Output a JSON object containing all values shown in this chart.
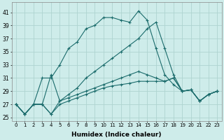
{
  "xlabel": "Humidex (Indice chaleur)",
  "ylabel": "",
  "xlim": [
    -0.5,
    23.5
  ],
  "ylim": [
    24.5,
    42.5
  ],
  "yticks": [
    25,
    27,
    29,
    31,
    33,
    35,
    37,
    39,
    41
  ],
  "xticks": [
    0,
    1,
    2,
    3,
    4,
    5,
    6,
    7,
    8,
    9,
    10,
    11,
    12,
    13,
    14,
    15,
    16,
    17,
    18,
    19,
    20,
    21,
    22,
    23
  ],
  "xtick_labels": [
    "0",
    "1",
    "2",
    "3",
    "4",
    "5",
    "6",
    "7",
    "8",
    "9",
    "10",
    "11",
    "12",
    "13",
    "14",
    "15",
    "16",
    "17",
    "18",
    "19",
    "20",
    "21",
    "22",
    "23"
  ],
  "bg_color": "#ceecea",
  "grid_color": "#aed4d0",
  "line_color": "#1a6b6b",
  "series": [
    {
      "x": [
        0,
        1,
        2,
        3,
        4,
        5,
        6,
        7,
        8,
        9,
        10,
        11,
        12,
        13,
        14,
        15,
        16,
        17,
        18,
        19,
        20,
        21,
        22,
        23
      ],
      "y": [
        27,
        25.5,
        27,
        31,
        31,
        33,
        35.5,
        36.5,
        38.5,
        39,
        40.2,
        40.2,
        39.8,
        39.5,
        41.2,
        39.8,
        35.5,
        31.5,
        30,
        29,
        29.2,
        27.5,
        28.5,
        29
      ]
    },
    {
      "x": [
        0,
        1,
        2,
        3,
        4,
        5,
        6,
        7,
        8,
        9,
        10,
        11,
        12,
        13,
        14,
        15,
        16,
        17,
        18,
        19,
        20,
        21,
        22,
        23
      ],
      "y": [
        27,
        25.5,
        27,
        27,
        25.5,
        27.5,
        28.5,
        29.5,
        31,
        32,
        33,
        34,
        35,
        36,
        37,
        38.5,
        39.5,
        35.5,
        31.5,
        29,
        29.2,
        27.5,
        28.5,
        29
      ]
    },
    {
      "x": [
        0,
        1,
        2,
        3,
        4,
        5,
        6,
        7,
        8,
        9,
        10,
        11,
        12,
        13,
        14,
        15,
        16,
        17,
        18,
        19,
        20,
        21,
        22,
        23
      ],
      "y": [
        27,
        25.5,
        27,
        27,
        31.5,
        27.5,
        28,
        28.5,
        29,
        29.5,
        30,
        30.5,
        31,
        31.5,
        32,
        31.5,
        31,
        30.5,
        31,
        29,
        29.2,
        27.5,
        28.5,
        29
      ]
    },
    {
      "x": [
        0,
        1,
        2,
        3,
        4,
        5,
        6,
        7,
        8,
        9,
        10,
        11,
        12,
        13,
        14,
        15,
        16,
        17,
        18,
        19,
        20,
        21,
        22,
        23
      ],
      "y": [
        27,
        25.5,
        27,
        27,
        25.5,
        27,
        27.5,
        28,
        28.5,
        29,
        29.5,
        29.8,
        30,
        30.2,
        30.5,
        30.5,
        30.5,
        30.5,
        31,
        29,
        29.2,
        27.5,
        28.5,
        29
      ]
    }
  ]
}
